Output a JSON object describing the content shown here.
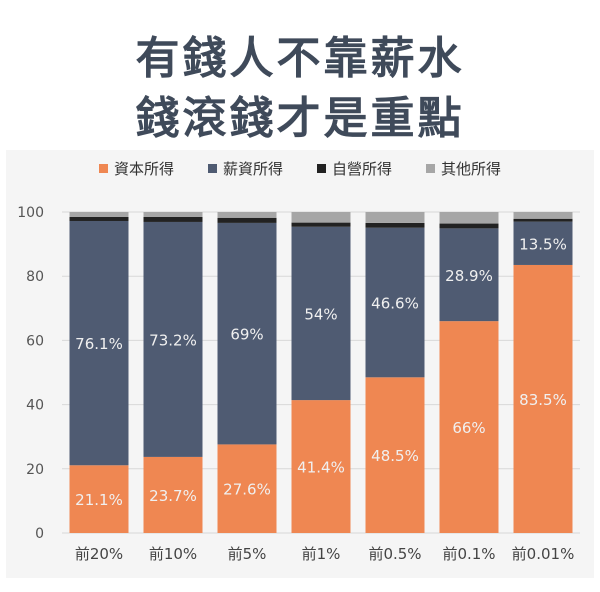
{
  "title": [
    "有錢人不靠薪水",
    "錢滾錢才是重點"
  ],
  "chart_data": {
    "type": "bar",
    "stacked": true,
    "title": "有錢人不靠薪水 錢滾錢才是重點",
    "xlabel": "",
    "ylabel": "",
    "ylim": [
      0,
      100
    ],
    "yticks": [
      "0",
      "20",
      "40",
      "60",
      "80",
      "100"
    ],
    "grid": true,
    "legend_position": "top",
    "categories": [
      "前20%",
      "前10%",
      "前5%",
      "前1%",
      "前0.5%",
      "前0.1%",
      "前0.01%"
    ],
    "series": [
      {
        "name": "資本所得",
        "color": "#ef8752",
        "values": [
          21.1,
          23.7,
          27.6,
          41.4,
          48.5,
          66,
          83.5
        ],
        "labels": [
          "21.1%",
          "23.7%",
          "27.6%",
          "41.4%",
          "48.5%",
          "66%",
          "83.5%"
        ]
      },
      {
        "name": "薪資所得",
        "color": "#4f5b72",
        "values": [
          76.1,
          73.2,
          69,
          54,
          46.6,
          28.9,
          13.5
        ],
        "labels": [
          "76.1%",
          "73.2%",
          "69%",
          "54%",
          "46.6%",
          "28.9%",
          "13.5%"
        ]
      },
      {
        "name": "自營所得",
        "color": "#222222",
        "values": [
          1.3,
          1.6,
          1.6,
          1.3,
          1.5,
          1.5,
          0.9
        ]
      },
      {
        "name": "其他所得",
        "color": "#a6a6a6",
        "values": [
          1.5,
          1.5,
          1.8,
          3.3,
          3.4,
          3.6,
          2.1
        ]
      }
    ]
  }
}
